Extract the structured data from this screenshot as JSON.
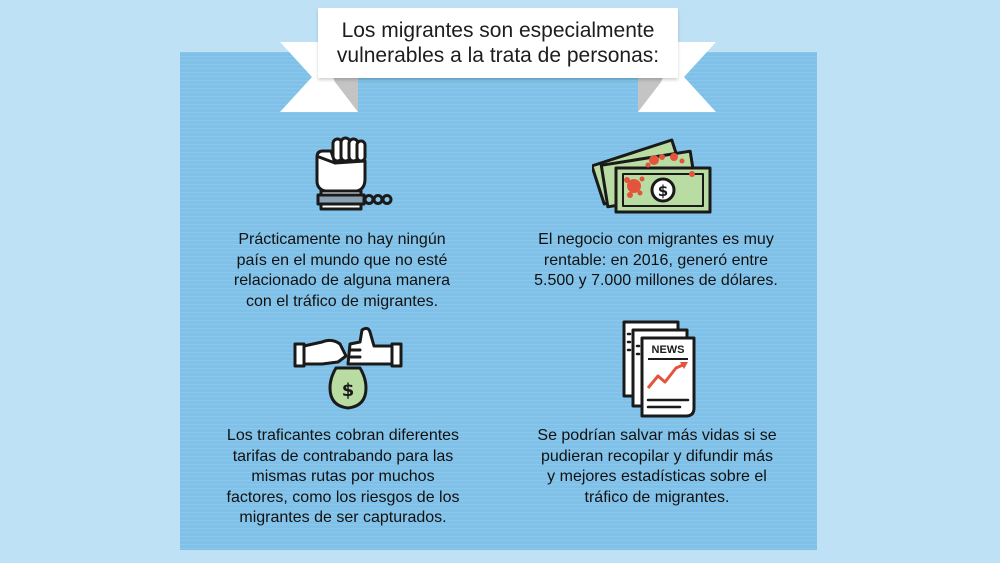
{
  "banner": {
    "title": "Los migrantes son especialmente\nvulnerables a la trata de personas:"
  },
  "facts": [
    {
      "icon": "chained-fist-icon",
      "text": "Prácticamente no hay ningún\npaís en el mundo que no esté\nrelacionado de alguna manera\ncon el tráfico de migrantes."
    },
    {
      "icon": "money-bills-icon",
      "text": "El negocio con migrantes es muy\nrentable: en 2016, generó entre\n5.500 y 7.000 millones de dólares."
    },
    {
      "icon": "money-bag-handshake-icon",
      "text": "Los traficantes cobran diferentes\ntarifas de contrabando para las\nmismas rutas por muchos\nfactores, como los riesgos de los\nmigrantes de ser capturados."
    },
    {
      "icon": "newspaper-stats-icon",
      "text": "Se podrían salvar más vidas si se\npudieran recopilar y difundir más\ny mejores estadísticas sobre el\ntráfico de migrantes."
    }
  ],
  "newspaper": {
    "masthead": "NEWS"
  },
  "colors": {
    "background": "#bfe1f6",
    "panel": "#7fc1e8",
    "banner": "#ffffff",
    "ribbon_tail": "#c4c4c4",
    "money_green": "#b9dca2",
    "blood_red": "#e2553c",
    "chart_line": "#e2553c",
    "cuff_steel": "#8aa3b4"
  }
}
